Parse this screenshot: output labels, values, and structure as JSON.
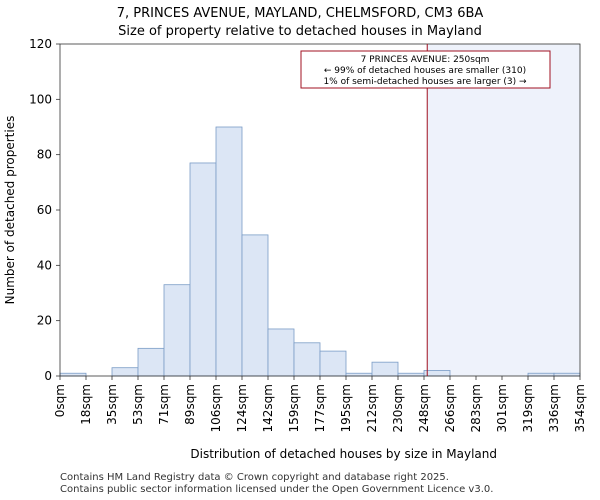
{
  "chart_data": {
    "type": "bar",
    "title": "7, PRINCES AVENUE, MAYLAND, CHELMSFORD, CM3 6BA",
    "subtitle": "Size of property relative to detached houses in Mayland",
    "xlabel": "Distribution of detached houses by size in Mayland",
    "ylabel": "Number of detached properties",
    "ylim": [
      0,
      120
    ],
    "yticks": [
      0,
      20,
      40,
      60,
      80,
      100,
      120
    ],
    "bin_edges": [
      0,
      17.7,
      35.4,
      53.1,
      70.8,
      88.5,
      106.2,
      123.9,
      141.6,
      159.3,
      177,
      194.7,
      212.4,
      230.1,
      247.8,
      265.5,
      283.2,
      300.9,
      318.6,
      336.3,
      354
    ],
    "tick_labels": [
      "0sqm",
      "18sqm",
      "35sqm",
      "53sqm",
      "71sqm",
      "89sqm",
      "106sqm",
      "124sqm",
      "142sqm",
      "159sqm",
      "177sqm",
      "195sqm",
      "212sqm",
      "230sqm",
      "248sqm",
      "266sqm",
      "283sqm",
      "301sqm",
      "319sqm",
      "336sqm",
      "354sqm"
    ],
    "values": [
      1,
      0,
      3,
      10,
      33,
      77,
      90,
      51,
      17,
      12,
      9,
      1,
      5,
      1,
      2,
      0,
      0,
      0,
      1,
      1
    ],
    "marker": {
      "value": 250,
      "color": "#a01020",
      "shade_color": "#eef2fb"
    },
    "annotation": {
      "line1": "7 PRINCES AVENUE: 250sqm",
      "line2": "← 99% of detached houses are smaller (310)",
      "line3": "1% of semi-detached houses are larger (3) →"
    },
    "bar_fill": "#dce6f5",
    "bar_stroke": "#7a9cc6"
  },
  "footer": {
    "line1": "Contains HM Land Registry data © Crown copyright and database right 2025.",
    "line2": "Contains public sector information licensed under the Open Government Licence v3.0."
  }
}
